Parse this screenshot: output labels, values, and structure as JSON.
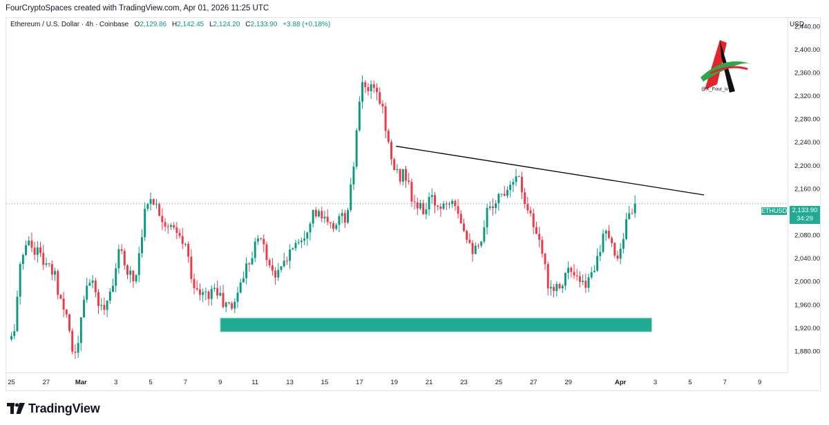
{
  "header": {
    "title": "FourCryptoSpaces created with TradingView.com, Apr 01, 2026 11:25 UTC"
  },
  "legend": {
    "symbol": "Ethereum / U.S. Dollar · 4h · Coinbase",
    "o_label": "O",
    "o_value": "2,129.86",
    "h_label": "H",
    "h_value": "2,142.45",
    "l_label": "L",
    "l_value": "2,124.20",
    "c_label": "C",
    "c_value": "2,133.90",
    "change": "+3.88 (+0.18%)"
  },
  "price_axis": {
    "currency": "USD"
  },
  "ticker_tag": "ETHUSD",
  "price_tag": {
    "price": "2,133.90",
    "countdown": "34:29"
  },
  "watermark": {
    "handle": "@X_Four_iv"
  },
  "footer": {
    "brand": "TradingView"
  },
  "colors": {
    "up": "#089981",
    "down": "#f23645",
    "zone": "#22ab94",
    "trendline": "#000000"
  },
  "chart_data": {
    "type": "candlestick",
    "timeframe": "4h",
    "y_ticks": [
      1880,
      1920,
      1960,
      2000,
      2040,
      2080,
      2120,
      2160,
      2200,
      2240,
      2280,
      2320,
      2360,
      2400,
      2440
    ],
    "y_tick_labels": [
      "1,880.00",
      "1,920.00",
      "1,960.00",
      "2,000.00",
      "2,040.00",
      "2,080.00",
      "2,120.00",
      "2,160.00",
      "2,200.00",
      "2,240.00",
      "2,280.00",
      "2,320.00",
      "2,360.00",
      "2,400.00",
      "2,440.00"
    ],
    "ylim": [
      1843,
      2454
    ],
    "x_ticks": [
      "25",
      "27",
      "Mar",
      "3",
      "5",
      "7",
      "9",
      "11",
      "13",
      "15",
      "17",
      "19",
      "21",
      "23",
      "25",
      "27",
      "29",
      "Apr",
      "3",
      "5",
      "7",
      "9"
    ],
    "x_tick_days": [
      -4,
      -2,
      0,
      2,
      4,
      6,
      8,
      10,
      12,
      14,
      16,
      18,
      20,
      22,
      24,
      26,
      28,
      31,
      33,
      35,
      37,
      39
    ],
    "xlim_days": [
      -4.3,
      40.6
    ],
    "anchors": [
      [
        -4.0,
        1900
      ],
      [
        -3.8,
        1930
      ],
      [
        -3.5,
        2020
      ],
      [
        -3.2,
        2070
      ],
      [
        -2.8,
        2060
      ],
      [
        -2.4,
        2050
      ],
      [
        -1.9,
        2020
      ],
      [
        -1.5,
        2010
      ],
      [
        -1.2,
        1970
      ],
      [
        -0.9,
        1960
      ],
      [
        -0.6,
        1900
      ],
      [
        -0.3,
        1865
      ],
      [
        0.0,
        1930
      ],
      [
        0.4,
        2010
      ],
      [
        0.8,
        1980
      ],
      [
        1.2,
        1950
      ],
      [
        1.6,
        1975
      ],
      [
        2.2,
        2050
      ],
      [
        2.7,
        2020
      ],
      [
        3.1,
        2000
      ],
      [
        3.6,
        2110
      ],
      [
        4.0,
        2150
      ],
      [
        4.5,
        2120
      ],
      [
        5.0,
        2095
      ],
      [
        5.5,
        2080
      ],
      [
        6.0,
        2060
      ],
      [
        6.6,
        1980
      ],
      [
        7.2,
        1975
      ],
      [
        7.7,
        1990
      ],
      [
        8.2,
        1960
      ],
      [
        8.7,
        1955
      ],
      [
        9.3,
        2010
      ],
      [
        9.8,
        2050
      ],
      [
        10.3,
        2080
      ],
      [
        10.8,
        2030
      ],
      [
        11.3,
        2010
      ],
      [
        11.8,
        2040
      ],
      [
        12.3,
        2070
      ],
      [
        12.8,
        2080
      ],
      [
        13.3,
        2120
      ],
      [
        13.8,
        2110
      ],
      [
        14.4,
        2090
      ],
      [
        14.8,
        2110
      ],
      [
        15.3,
        2110
      ],
      [
        15.6,
        2180
      ],
      [
        15.9,
        2280
      ],
      [
        16.2,
        2340
      ],
      [
        16.5,
        2330
      ],
      [
        17.0,
        2325
      ],
      [
        17.4,
        2290
      ],
      [
        17.8,
        2210
      ],
      [
        18.2,
        2180
      ],
      [
        18.6,
        2190
      ],
      [
        19.0,
        2140
      ],
      [
        19.6,
        2120
      ],
      [
        20.1,
        2140
      ],
      [
        20.6,
        2130
      ],
      [
        21.0,
        2140
      ],
      [
        21.4,
        2150
      ],
      [
        21.8,
        2110
      ],
      [
        22.2,
        2080
      ],
      [
        22.6,
        2050
      ],
      [
        23.0,
        2060
      ],
      [
        23.4,
        2130
      ],
      [
        23.8,
        2140
      ],
      [
        24.2,
        2150
      ],
      [
        24.6,
        2170
      ],
      [
        25.0,
        2190
      ],
      [
        25.4,
        2150
      ],
      [
        25.8,
        2120
      ],
      [
        26.2,
        2070
      ],
      [
        26.5,
        2050
      ],
      [
        26.8,
        2000
      ],
      [
        27.2,
        1990
      ],
      [
        27.6,
        2000
      ],
      [
        28.0,
        2020
      ],
      [
        28.5,
        2000
      ],
      [
        28.9,
        1990
      ],
      [
        29.3,
        2010
      ],
      [
        29.7,
        2050
      ],
      [
        30.1,
        2080
      ],
      [
        30.5,
        2060
      ],
      [
        30.9,
        2040
      ],
      [
        31.2,
        2090
      ],
      [
        31.5,
        2110
      ],
      [
        31.7,
        2130
      ],
      [
        31.9,
        2134
      ]
    ],
    "last_price": 2133.9,
    "trendline": {
      "start": {
        "day": 18.1,
        "price": 2233
      },
      "end": {
        "day": 35.8,
        "price": 2149
      }
    },
    "support_zone": {
      "day_start": 8.0,
      "day_end": 32.8,
      "price_low": 1913,
      "price_high": 1937
    }
  }
}
